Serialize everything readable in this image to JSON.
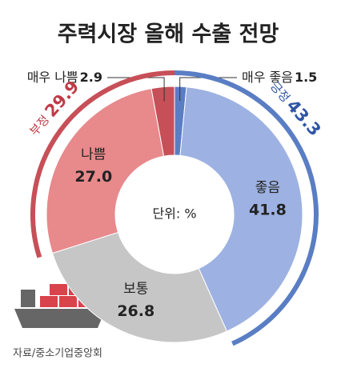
{
  "chart_data": {
    "type": "donut",
    "title": "주력시장 올해 수출 전망",
    "categories": [
      "매우 좋음",
      "좋음",
      "보통",
      "나쁨",
      "매우 나쁨"
    ],
    "values": [
      1.5,
      41.8,
      26.8,
      27.0,
      2.9
    ],
    "value_labels": [
      "1.5",
      "41.8",
      "26.8",
      "27.0",
      "2.9"
    ],
    "colors": [
      "#5a7ec4",
      "#9db2e2",
      "#c6c6c6",
      "#e8898c",
      "#c74f58"
    ],
    "groups": [
      {
        "name": "긍정",
        "value": 43.3,
        "value_label": "43.3",
        "color": "#5a7ec4"
      },
      {
        "name": "부정",
        "value": 29.9,
        "value_label": "29.9",
        "color": "#c74f58"
      }
    ],
    "center_label": "단위: %",
    "source": "자료/중소기업중앙회"
  }
}
